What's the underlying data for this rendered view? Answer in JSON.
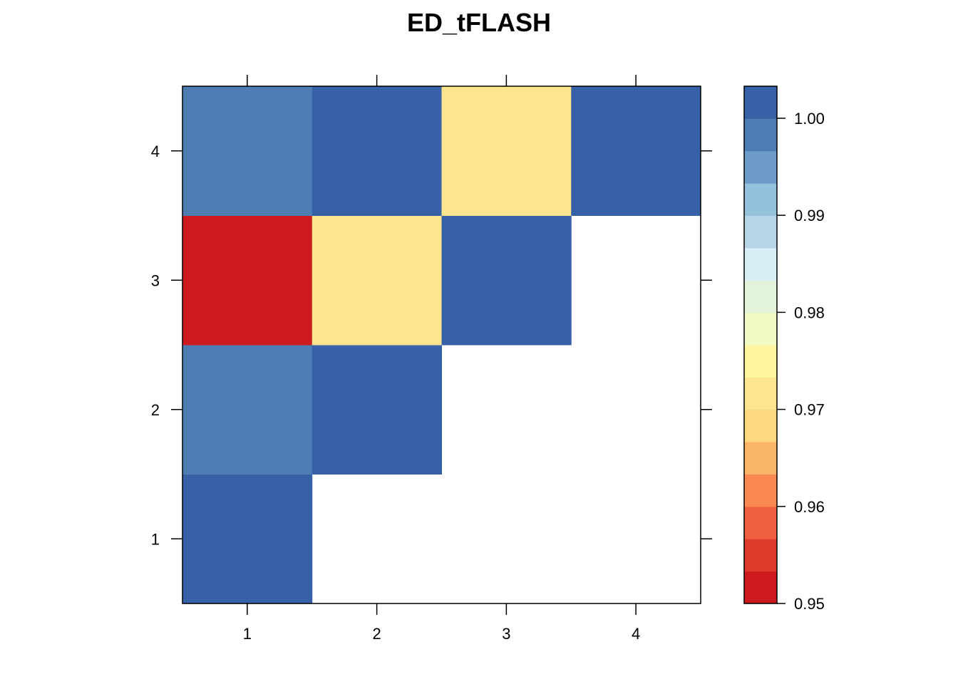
{
  "chart_data": {
    "type": "heatmap",
    "title": "ED_tFLASH",
    "x_categories": [
      "1",
      "2",
      "3",
      "4"
    ],
    "y_categories": [
      "1",
      "2",
      "3",
      "4"
    ],
    "cells": [
      {
        "x": "1",
        "y": "1",
        "value": 1.0
      },
      {
        "x": "1",
        "y": "2",
        "value": 0.998
      },
      {
        "x": "2",
        "y": "2",
        "value": 1.0
      },
      {
        "x": "1",
        "y": "3",
        "value": 0.95
      },
      {
        "x": "2",
        "y": "3",
        "value": 0.972
      },
      {
        "x": "3",
        "y": "3",
        "value": 1.0
      },
      {
        "x": "1",
        "y": "4",
        "value": 0.998
      },
      {
        "x": "2",
        "y": "4",
        "value": 1.0
      },
      {
        "x": "3",
        "y": "4",
        "value": 0.972
      },
      {
        "x": "4",
        "y": "4",
        "value": 1.0
      }
    ],
    "colorbar": {
      "range": [
        0.95,
        1.0033
      ],
      "tick_values": [
        0.95,
        0.96,
        0.97,
        0.98,
        0.99,
        1.0
      ],
      "tick_labels": [
        "0.95",
        "0.96",
        "0.97",
        "0.98",
        "0.99",
        "1.00"
      ],
      "palette": [
        "#CC1A1E",
        "#DC3B2C",
        "#EF603F",
        "#FB8A51",
        "#FAB468",
        "#FDD880",
        "#FDE58F",
        "#FEF5A0",
        "#F3F9C2",
        "#E3F3DB",
        "#D9EEF4",
        "#B6D6E8",
        "#94C1DC",
        "#6D9CC8",
        "#4E7DB4",
        "#3661A6"
      ]
    },
    "grid": false,
    "legend": "right"
  }
}
